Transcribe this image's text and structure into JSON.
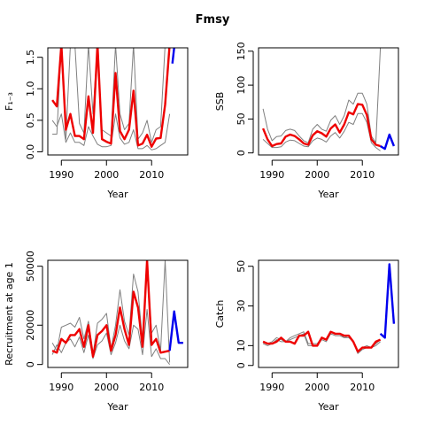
{
  "figure": {
    "title": "Fmsy"
  },
  "chart_data": [
    {
      "type": "line",
      "xlabel": "Year",
      "ylabel": "F₁₋₃",
      "xlim": [
        1987,
        2018
      ],
      "ylim": [
        -0.05,
        1.65
      ],
      "xticks": [
        "1990",
        "2000",
        "2010"
      ],
      "yticks": [
        "0.0",
        "0.5",
        "1.0",
        "1.5"
      ],
      "series": [
        {
          "role": "upper",
          "color": "#808080",
          "x": [
            1988,
            1989,
            1990,
            1991,
            1992,
            1993,
            1994,
            1995,
            1996,
            1997,
            1998,
            1999,
            2000,
            2001,
            2002,
            2003,
            2004,
            2005,
            2006,
            2007,
            2008,
            2009,
            2010,
            2011,
            2012,
            2013,
            2014
          ],
          "y": [
            0.28,
            0.28,
            1.7,
            0.2,
            1.7,
            1.7,
            0.45,
            0.3,
            1.7,
            0.6,
            1.7,
            0.35,
            0.3,
            0.25,
            1.7,
            0.6,
            0.35,
            0.45,
            1.7,
            0.2,
            0.3,
            0.5,
            0.15,
            0.35,
            0.4,
            1.7,
            1.7
          ]
        },
        {
          "role": "lower",
          "color": "#808080",
          "x": [
            1988,
            1989,
            1990,
            1991,
            1992,
            1993,
            1994,
            1995,
            1996,
            1997,
            1998,
            1999,
            2000,
            2001,
            2002,
            2003,
            2004,
            2005,
            2006,
            2007,
            2008,
            2009,
            2010,
            2011,
            2012,
            2013,
            2014
          ],
          "y": [
            0.5,
            0.4,
            0.6,
            0.15,
            0.3,
            0.15,
            0.15,
            0.1,
            0.4,
            0.25,
            0.12,
            0.08,
            0.08,
            0.1,
            0.6,
            0.22,
            0.12,
            0.15,
            0.35,
            0.05,
            0.05,
            0.1,
            0.03,
            0.05,
            0.1,
            0.15,
            0.6
          ]
        },
        {
          "role": "median",
          "color": "#ee0000",
          "x": [
            1988,
            1989,
            1990,
            1991,
            1992,
            1993,
            1994,
            1995,
            1996,
            1997,
            1998,
            1999,
            2000,
            2001,
            2002,
            2003,
            2004,
            2005,
            2006,
            2007,
            2008,
            2009,
            2010,
            2011,
            2012,
            2013,
            2014
          ],
          "y": [
            0.82,
            0.72,
            1.7,
            0.35,
            0.6,
            0.25,
            0.25,
            0.2,
            0.88,
            0.3,
            1.7,
            0.2,
            0.16,
            0.13,
            1.25,
            0.33,
            0.2,
            0.35,
            0.97,
            0.1,
            0.13,
            0.27,
            0.08,
            0.21,
            0.22,
            0.75,
            1.7
          ]
        },
        {
          "role": "projection",
          "color": "#0000ee",
          "x": [
            2014.6,
            2015.0,
            2015.6
          ],
          "y": [
            1.4,
            1.65,
            1.7
          ]
        }
      ]
    },
    {
      "type": "line",
      "xlabel": "Year",
      "ylabel": "SSB",
      "xlim": [
        1987,
        2018
      ],
      "ylim": [
        -3,
        155
      ],
      "xticks": [
        "1990",
        "2000",
        "2010"
      ],
      "yticks": [
        "0",
        "50",
        "100",
        "150"
      ],
      "series": [
        {
          "role": "upper",
          "color": "#808080",
          "x": [
            1988,
            1989,
            1990,
            1991,
            1992,
            1993,
            1994,
            1995,
            1996,
            1997,
            1998,
            1999,
            2000,
            2001,
            2002,
            2003,
            2004,
            2005,
            2006,
            2007,
            2008,
            2009,
            2010,
            2011,
            2012,
            2013,
            2014
          ],
          "y": [
            65,
            35,
            18,
            24,
            25,
            33,
            35,
            33,
            25,
            18,
            15,
            35,
            42,
            35,
            32,
            48,
            55,
            42,
            55,
            78,
            72,
            88,
            88,
            72,
            25,
            15,
            155
          ]
        },
        {
          "role": "lower",
          "color": "#808080",
          "x": [
            1988,
            1989,
            1990,
            1991,
            1992,
            1993,
            1994,
            1995,
            1996,
            1997,
            1998,
            1999,
            2000,
            2001,
            2002,
            2003,
            2004,
            2005,
            2006,
            2007,
            2008,
            2009,
            2010,
            2011,
            2012,
            2013,
            2014
          ],
          "y": [
            20,
            14,
            8,
            8,
            9,
            16,
            19,
            18,
            14,
            10,
            9,
            18,
            22,
            20,
            16,
            25,
            30,
            22,
            32,
            45,
            42,
            58,
            58,
            45,
            15,
            8,
            3
          ]
        },
        {
          "role": "median",
          "color": "#ee0000",
          "x": [
            1988,
            1989,
            1990,
            1991,
            1992,
            1993,
            1994,
            1995,
            1996,
            1997,
            1998,
            1999,
            2000,
            2001,
            2002,
            2003,
            2004,
            2005,
            2006,
            2007,
            2008,
            2009,
            2010,
            2011,
            2012,
            2013,
            2014
          ],
          "y": [
            36,
            20,
            10,
            13,
            14,
            24,
            27,
            25,
            20,
            14,
            12,
            26,
            32,
            29,
            24,
            36,
            42,
            30,
            42,
            60,
            57,
            72,
            71,
            56,
            20,
            12,
            10
          ]
        },
        {
          "role": "projection",
          "color": "#0000ee",
          "x": [
            2014,
            2015,
            2016,
            2017
          ],
          "y": [
            10,
            6,
            27,
            10
          ]
        }
      ]
    },
    {
      "type": "line",
      "xlabel": "Year",
      "ylabel": "Recruitment at age 1",
      "xlim": [
        1987,
        2018
      ],
      "ylim": [
        -1500,
        53000
      ],
      "xticks": [
        "1990",
        "2000",
        "2010"
      ],
      "yticks": [
        "0",
        "20000",
        "50000"
      ],
      "series": [
        {
          "role": "upper",
          "color": "#808080",
          "x": [
            1988,
            1989,
            1990,
            1991,
            1992,
            1993,
            1994,
            1995,
            1996,
            1997,
            1998,
            1999,
            2000,
            2001,
            2002,
            2003,
            2004,
            2005,
            2006,
            2007,
            2008,
            2009,
            2010,
            2011,
            2012,
            2013,
            2014
          ],
          "y": [
            11000,
            7000,
            19000,
            20000,
            21000,
            19000,
            24000,
            13000,
            22000,
            5000,
            21000,
            23000,
            26000,
            8000,
            20000,
            38000,
            22000,
            15000,
            46000,
            37000,
            12000,
            53000,
            16000,
            20000,
            7000,
            53000,
            1000
          ]
        },
        {
          "role": "lower",
          "color": "#808080",
          "x": [
            1988,
            1989,
            1990,
            1991,
            1992,
            1993,
            1994,
            1995,
            1996,
            1997,
            1998,
            1999,
            2000,
            2001,
            2002,
            2003,
            2004,
            2005,
            2006,
            2007,
            2008,
            2009,
            2010,
            2011,
            2012,
            2013,
            2014
          ],
          "y": [
            5000,
            10000,
            6000,
            11000,
            13000,
            9000,
            14000,
            6000,
            15000,
            3000,
            10000,
            12000,
            16000,
            5000,
            11000,
            20000,
            12000,
            8000,
            20000,
            18000,
            5000,
            28000,
            4000,
            8000,
            3000,
            3000,
            0
          ]
        },
        {
          "role": "median",
          "color": "#ee0000",
          "x": [
            1988,
            1989,
            1990,
            1991,
            1992,
            1993,
            1994,
            1995,
            1996,
            1997,
            1998,
            1999,
            2000,
            2001,
            2002,
            2003,
            2004,
            2005,
            2006,
            2007,
            2008,
            2009,
            2010,
            2011,
            2012,
            2013,
            2014
          ],
          "y": [
            7000,
            6000,
            13000,
            11000,
            15000,
            15000,
            18000,
            9000,
            20000,
            4000,
            15000,
            17000,
            20000,
            7000,
            15000,
            29000,
            18000,
            10000,
            37000,
            29000,
            9000,
            53000,
            10000,
            13000,
            6000,
            6500,
            7000
          ]
        },
        {
          "role": "projection",
          "color": "#0000ee",
          "x": [
            2014,
            2015,
            2016,
            2017
          ],
          "y": [
            7000,
            27000,
            11000,
            11000
          ]
        }
      ]
    },
    {
      "type": "line",
      "xlabel": "Year",
      "ylabel": "Catch",
      "xlim": [
        1987,
        2018
      ],
      "ylim": [
        -1,
        53
      ],
      "xticks": [
        "1990",
        "2000",
        "2010"
      ],
      "yticks": [
        "0",
        "10",
        "30",
        "50"
      ],
      "series": [
        {
          "role": "upper",
          "color": "#808080",
          "x": [
            1988,
            1989,
            1990,
            1991,
            1992,
            1993,
            1994,
            1995,
            1996,
            1997,
            1998,
            1999,
            2000,
            2001,
            2002,
            2003,
            2004,
            2005,
            2006,
            2007,
            2008,
            2009,
            2010,
            2011,
            2012,
            2013,
            2014
          ],
          "y": [
            12,
            11,
            12,
            14,
            13,
            12,
            14,
            15,
            16,
            17,
            11,
            11,
            11,
            14,
            13,
            17,
            16,
            16,
            14,
            15,
            12,
            7,
            9,
            10,
            9,
            11,
            13
          ]
        },
        {
          "role": "lower",
          "color": "#808080",
          "x": [
            1988,
            1989,
            1990,
            1991,
            1992,
            1993,
            1994,
            1995,
            1996,
            1997,
            1998,
            1999,
            2000,
            2001,
            2002,
            2003,
            2004,
            2005,
            2006,
            2007,
            2008,
            2009,
            2010,
            2011,
            2012,
            2013,
            2014
          ],
          "y": [
            11,
            10,
            11,
            13,
            12,
            12,
            13,
            14,
            15,
            16,
            10,
            10,
            10,
            13,
            12,
            16,
            15,
            15,
            14,
            14,
            12,
            6,
            8,
            9,
            9,
            10,
            12
          ]
        },
        {
          "role": "median",
          "color": "#ee0000",
          "x": [
            1988,
            1989,
            1990,
            1991,
            1992,
            1993,
            1994,
            1995,
            1996,
            1997,
            1998,
            1999,
            2000,
            2001,
            2002,
            2003,
            2004,
            2005,
            2006,
            2007,
            2008,
            2009,
            2010,
            2011,
            2012,
            2013,
            2014
          ],
          "y": [
            12,
            11,
            11,
            12,
            14,
            12,
            12,
            11,
            15,
            15,
            17,
            10,
            10,
            14,
            13,
            17,
            16,
            16,
            15,
            15,
            12,
            7,
            9,
            9,
            9,
            12,
            13
          ]
        },
        {
          "role": "projection",
          "color": "#0000ee",
          "x": [
            2014,
            2015,
            2016,
            2017
          ],
          "y": [
            16,
            14,
            51,
            21
          ]
        }
      ]
    }
  ]
}
